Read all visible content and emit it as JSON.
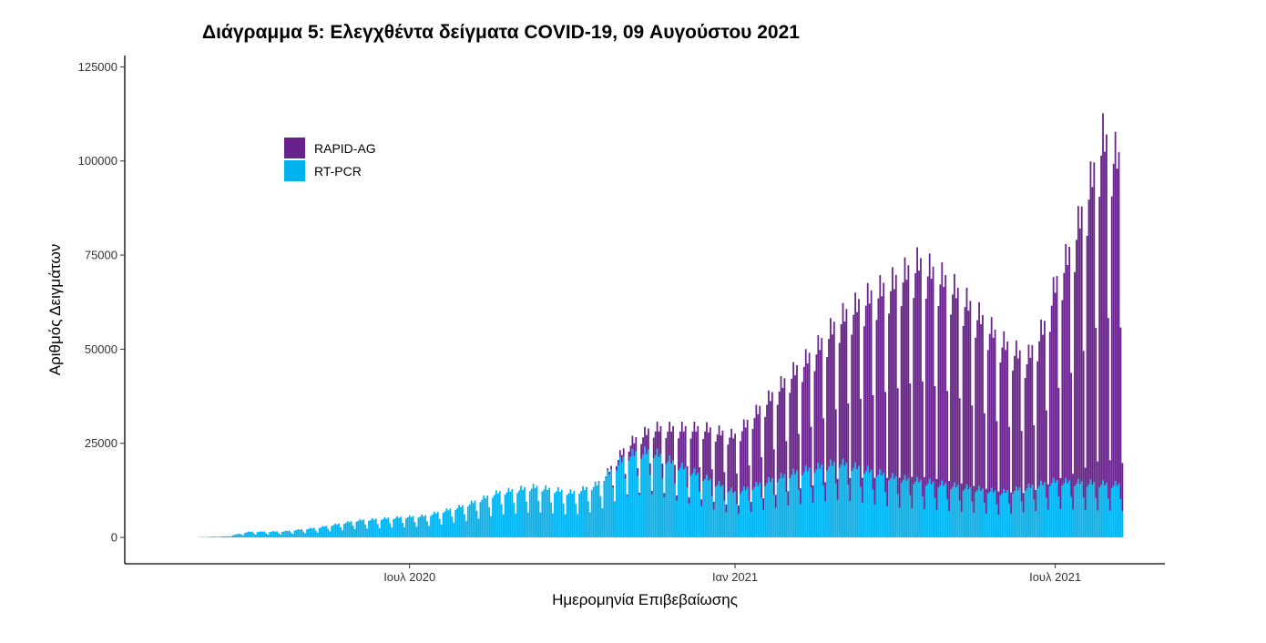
{
  "chart_data": {
    "type": "bar",
    "stacked": true,
    "title": "Διάγραμμα 5: Ελεγχθέντα δείγματα COVID-19, 09 Αυγούστου 2021",
    "xlabel": "Ημερομηνία Επιβεβαίωσης",
    "ylabel": "Αριθμός Δειγμάτων",
    "x_start": "2020-03-04",
    "x_end": "2021-08-08",
    "xlim": [
      "2020-01-22",
      "2021-09-01"
    ],
    "ylim": [
      -7000,
      128000
    ],
    "yticks": [
      0,
      25000,
      50000,
      75000,
      100000,
      125000
    ],
    "ytick_labels": [
      "0",
      "25000",
      "50000",
      "75000",
      "100000",
      "125000"
    ],
    "xticks": [
      {
        "date": "2020-07-01",
        "label": "Ιουλ 2020"
      },
      {
        "date": "2021-01-01",
        "label": "Ιαν 2021"
      },
      {
        "date": "2021-07-01",
        "label": "Ιουλ 2021"
      }
    ],
    "legend_position": "top-left",
    "grid": false,
    "series": [
      {
        "name": "RAPID-AG",
        "color": "#68228B",
        "anchors": [
          [
            "2020-03-04",
            0
          ],
          [
            "2020-10-10",
            0
          ],
          [
            "2020-10-20",
            300
          ],
          [
            "2020-11-01",
            2500
          ],
          [
            "2020-11-15",
            6000
          ],
          [
            "2020-12-01",
            10000
          ],
          [
            "2020-12-15",
            13000
          ],
          [
            "2021-01-01",
            15000
          ],
          [
            "2021-01-15",
            20000
          ],
          [
            "2021-02-01",
            26000
          ],
          [
            "2021-02-15",
            31000
          ],
          [
            "2021-03-01",
            38000
          ],
          [
            "2021-03-15",
            45000
          ],
          [
            "2021-04-01",
            52000
          ],
          [
            "2021-04-15",
            58000
          ],
          [
            "2021-05-01",
            54000
          ],
          [
            "2021-05-15",
            48000
          ],
          [
            "2021-06-01",
            40000
          ],
          [
            "2021-06-15",
            34000
          ],
          [
            "2021-06-25",
            42000
          ],
          [
            "2021-07-01",
            52000
          ],
          [
            "2021-07-10",
            62000
          ],
          [
            "2021-07-20",
            78000
          ],
          [
            "2021-07-28",
            92000
          ],
          [
            "2021-08-08",
            85000
          ]
        ]
      },
      {
        "name": "RT-PCR",
        "color": "#00B2EE",
        "anchors": [
          [
            "2020-03-04",
            80
          ],
          [
            "2020-03-20",
            300
          ],
          [
            "2020-04-01",
            1500
          ],
          [
            "2020-04-20",
            1600
          ],
          [
            "2020-05-10",
            2600
          ],
          [
            "2020-06-01",
            4500
          ],
          [
            "2020-06-20",
            5200
          ],
          [
            "2020-07-10",
            5800
          ],
          [
            "2020-08-01",
            8500
          ],
          [
            "2020-08-20",
            12000
          ],
          [
            "2020-09-10",
            13500
          ],
          [
            "2020-10-01",
            12000
          ],
          [
            "2020-10-15",
            14000
          ],
          [
            "2020-11-01",
            22000
          ],
          [
            "2020-11-15",
            23000
          ],
          [
            "2020-12-01",
            19000
          ],
          [
            "2020-12-15",
            16000
          ],
          [
            "2021-01-01",
            12000
          ],
          [
            "2021-02-01",
            17000
          ],
          [
            "2021-03-01",
            20000
          ],
          [
            "2021-04-01",
            16000
          ],
          [
            "2021-05-01",
            14000
          ],
          [
            "2021-06-01",
            12000
          ],
          [
            "2021-07-01",
            15000
          ],
          [
            "2021-08-08",
            14000
          ]
        ]
      }
    ]
  }
}
